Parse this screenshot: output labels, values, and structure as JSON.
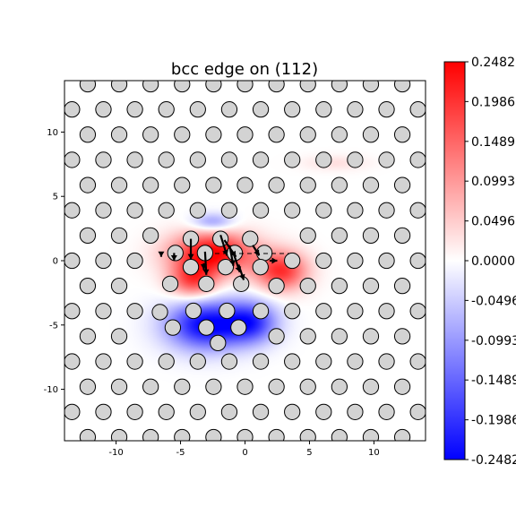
{
  "chart_data": {
    "type": "heatmap",
    "title": "bcc edge on (112)",
    "xlabel": "",
    "ylabel": "",
    "xlim": [
      -14,
      14
    ],
    "ylim": [
      -14,
      14
    ],
    "x_ticks": [
      -10,
      -5,
      0,
      5,
      10
    ],
    "y_ticks": [
      -10,
      -5,
      0,
      5,
      10
    ],
    "grid": false,
    "colormap": {
      "name": "bwr",
      "min_color": "#0000ff",
      "mid_color": "#ffffff",
      "max_color": "#ff0000",
      "range": [
        -0.2482,
        0.2482
      ]
    },
    "colorbar_ticks": [
      {
        "value": 0.2482,
        "label": "0.2482"
      },
      {
        "value": 0.1986,
        "label": "0.1986"
      },
      {
        "value": 0.1489,
        "label": "0.1489"
      },
      {
        "value": 0.0993,
        "label": "0.0993"
      },
      {
        "value": 0.0496,
        "label": "0.0496"
      },
      {
        "value": 0.0,
        "label": "0.0000"
      },
      {
        "value": -0.0496,
        "label": "-0.0496"
      },
      {
        "value": -0.0993,
        "label": "-0.0993"
      },
      {
        "value": -0.1489,
        "label": "-0.1489"
      },
      {
        "value": -0.1986,
        "label": "-0.1986"
      },
      {
        "value": -0.2482,
        "label": "-0.2482"
      }
    ],
    "field_blobs": [
      {
        "x": -2.5,
        "y": 0.6,
        "sx": 3.2,
        "sy": 1.6,
        "value": 0.2482
      },
      {
        "x": 2.8,
        "y": -0.8,
        "sx": 2.0,
        "sy": 1.5,
        "value": 0.2
      },
      {
        "x": -4.0,
        "y": -1.5,
        "sx": 1.8,
        "sy": 1.4,
        "value": 0.18
      },
      {
        "x": -3.0,
        "y": -5.0,
        "sx": 3.0,
        "sy": 1.9,
        "value": -0.2482
      },
      {
        "x": 0.5,
        "y": -4.8,
        "sx": 2.0,
        "sy": 1.6,
        "value": -0.18
      },
      {
        "x": -2.5,
        "y": 3.0,
        "sx": 1.6,
        "sy": 0.7,
        "value": -0.1
      },
      {
        "x": 7.0,
        "y": 7.6,
        "sx": 2.5,
        "sy": 0.6,
        "value": 0.03
      }
    ],
    "lattice": {
      "basis_a": [
        2.44,
        0.0
      ],
      "basis_b": [
        1.22,
        1.96
      ],
      "origin": [
        -1.22,
        0.0
      ],
      "atom_radius": 0.6,
      "face_color": "#d3d3d3",
      "edge_color": "#000000"
    },
    "core_atoms": [
      [
        -4.2,
        1.7
      ],
      [
        -1.9,
        1.7
      ],
      [
        0.4,
        1.7
      ],
      [
        -5.4,
        0.6
      ],
      [
        -3.1,
        0.6
      ],
      [
        -0.8,
        0.6
      ],
      [
        1.5,
        0.6
      ],
      [
        -4.2,
        -0.5
      ],
      [
        -1.5,
        -0.5
      ],
      [
        1.2,
        -0.5
      ],
      [
        -5.8,
        -1.8
      ],
      [
        -3.0,
        -1.8
      ],
      [
        -0.3,
        -1.8
      ],
      [
        -6.6,
        -4.0
      ],
      [
        -4.0,
        -3.9
      ],
      [
        -1.4,
        -3.9
      ],
      [
        -5.6,
        -5.2
      ],
      [
        -3.0,
        -5.2
      ],
      [
        -0.5,
        -5.2
      ],
      [
        -2.1,
        -6.4
      ]
    ],
    "displacements": [
      {
        "x": -4.2,
        "y": 1.7,
        "dx": 0.0,
        "dy": -1.6
      },
      {
        "x": -3.1,
        "y": 0.7,
        "dx": 0.1,
        "dy": -1.8
      },
      {
        "x": -1.9,
        "y": 2.0,
        "dx": 0.5,
        "dy": -1.6
      },
      {
        "x": -1.6,
        "y": 1.6,
        "dx": 0.9,
        "dy": -1.3
      },
      {
        "x": -0.9,
        "y": 0.6,
        "dx": 0.5,
        "dy": -1.5
      },
      {
        "x": -1.2,
        "y": 1.2,
        "dx": 0.3,
        "dy": -1.6
      },
      {
        "x": 0.6,
        "y": 1.2,
        "dx": 0.5,
        "dy": -0.8
      },
      {
        "x": -5.5,
        "y": 0.6,
        "dx": 0.0,
        "dy": -0.6
      },
      {
        "x": -6.5,
        "y": 0.6,
        "dx": 0.0,
        "dy": -0.3
      },
      {
        "x": 1.9,
        "y": 0.0,
        "dx": 0.6,
        "dy": 0.0
      },
      {
        "x": -0.5,
        "y": -0.3,
        "dx": 0.4,
        "dy": -1.2
      },
      {
        "x": -3.2,
        "y": -0.2,
        "dx": 0.0,
        "dy": -0.5
      }
    ]
  }
}
